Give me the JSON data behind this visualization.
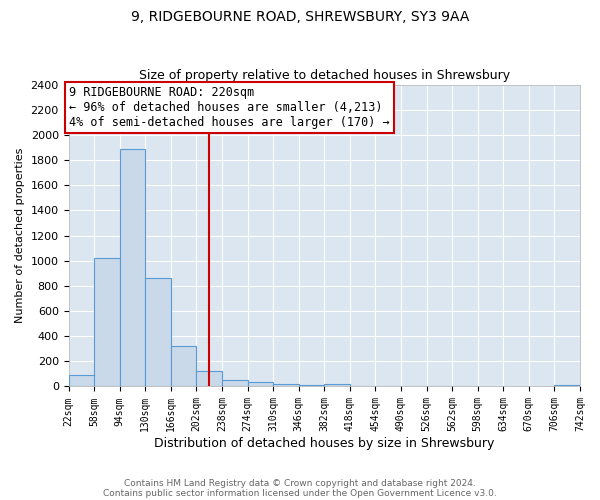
{
  "title": "9, RIDGEBOURNE ROAD, SHREWSBURY, SY3 9AA",
  "subtitle": "Size of property relative to detached houses in Shrewsbury",
  "xlabel": "Distribution of detached houses by size in Shrewsbury",
  "ylabel": "Number of detached properties",
  "bin_edges": [
    22,
    58,
    94,
    130,
    166,
    202,
    238,
    274,
    310,
    346,
    382,
    418,
    454,
    490,
    526,
    562,
    598,
    634,
    670,
    706,
    742
  ],
  "bar_heights": [
    90,
    1025,
    1890,
    860,
    320,
    120,
    50,
    35,
    20,
    15,
    20,
    5,
    3,
    2,
    1,
    1,
    0,
    0,
    0,
    15
  ],
  "bar_color": "#c9d9ea",
  "bar_edge_color": "#5b9bd5",
  "property_size": 220,
  "vline_color": "#cc0000",
  "ylim": [
    0,
    2400
  ],
  "yticks": [
    0,
    200,
    400,
    600,
    800,
    1000,
    1200,
    1400,
    1600,
    1800,
    2000,
    2200,
    2400
  ],
  "annotation_line1": "9 RIDGEBOURNE ROAD: 220sqm",
  "annotation_line2": "← 96% of detached houses are smaller (4,213)",
  "annotation_line3": "4% of semi-detached houses are larger (170) →",
  "annotation_box_facecolor": "#ffffff",
  "annotation_box_edgecolor": "#cc0000",
  "footer_line1": "Contains HM Land Registry data © Crown copyright and database right 2024.",
  "footer_line2": "Contains public sector information licensed under the Open Government Licence v3.0.",
  "figure_bg": "#ffffff",
  "plot_bg": "#dce6f0",
  "grid_color": "#ffffff"
}
